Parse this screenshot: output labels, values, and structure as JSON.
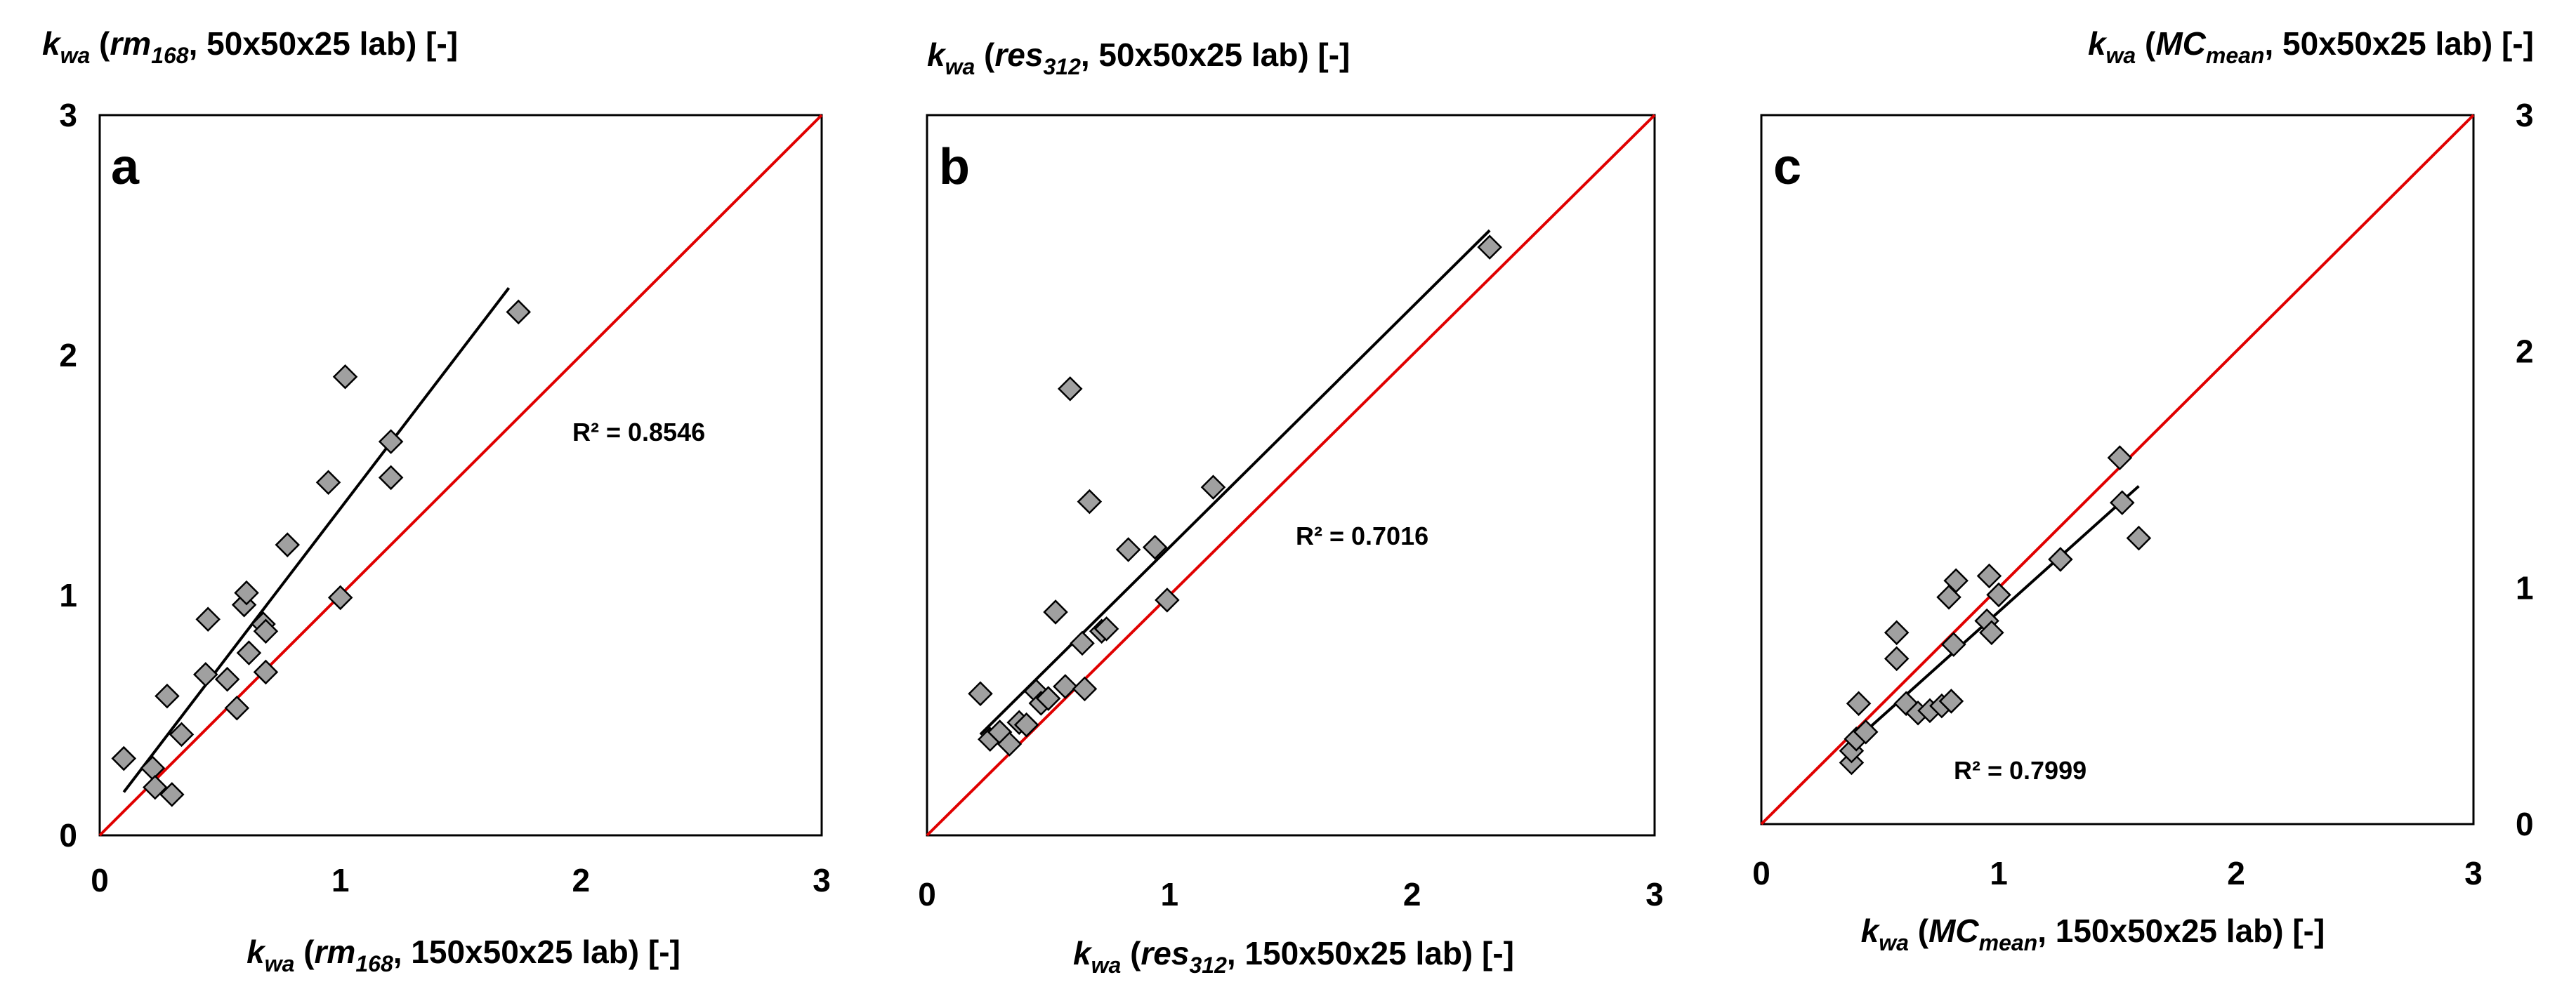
{
  "chart_data": [
    {
      "type": "scatter",
      "panel_label": "a",
      "ylabel_prefix": "k",
      "ylabel_sub": "wa",
      "ylabel_open": " (",
      "ylabel_var": "rm",
      "ylabel_varsub": "168",
      "ylabel_rest": ", 50x50x25 lab) [-]",
      "xlabel_prefix": "k",
      "xlabel_sub": "wa",
      "xlabel_open": " (",
      "xlabel_var": "rm",
      "xlabel_varsub": "168",
      "xlabel_rest": ", 150x50x25 lab) [-]",
      "xlim": [
        0,
        3
      ],
      "ylim": [
        0,
        3
      ],
      "x_ticks": [
        "0",
        "1",
        "2",
        "3"
      ],
      "y_ticks": [
        "0",
        "1",
        "2",
        "3"
      ],
      "r2_label": "R² = 0.8546",
      "points": [
        {
          "x": 0.1,
          "y": 0.32
        },
        {
          "x": 0.22,
          "y": 0.28
        },
        {
          "x": 0.23,
          "y": 0.2
        },
        {
          "x": 0.3,
          "y": 0.17
        },
        {
          "x": 0.28,
          "y": 0.58
        },
        {
          "x": 0.34,
          "y": 0.42
        },
        {
          "x": 0.44,
          "y": 0.67
        },
        {
          "x": 0.45,
          "y": 0.9
        },
        {
          "x": 0.53,
          "y": 0.65
        },
        {
          "x": 0.57,
          "y": 0.53
        },
        {
          "x": 0.6,
          "y": 0.96
        },
        {
          "x": 0.61,
          "y": 1.01
        },
        {
          "x": 0.62,
          "y": 0.76
        },
        {
          "x": 0.68,
          "y": 0.88
        },
        {
          "x": 0.69,
          "y": 0.85
        },
        {
          "x": 0.69,
          "y": 0.68
        },
        {
          "x": 0.78,
          "y": 1.21
        },
        {
          "x": 0.95,
          "y": 1.47
        },
        {
          "x": 1.0,
          "y": 0.99
        },
        {
          "x": 1.02,
          "y": 1.91
        },
        {
          "x": 1.21,
          "y": 1.64
        },
        {
          "x": 1.21,
          "y": 1.49
        },
        {
          "x": 1.74,
          "y": 2.18
        }
      ],
      "trendline": {
        "x": [
          0.1,
          1.7
        ],
        "y": [
          0.18,
          2.28
        ]
      },
      "reference_line": {
        "x": [
          0,
          3
        ],
        "y": [
          0,
          3
        ]
      }
    },
    {
      "type": "scatter",
      "panel_label": "b",
      "ylabel_prefix": "k",
      "ylabel_sub": "wa",
      "ylabel_open": " (",
      "ylabel_var": "res",
      "ylabel_varsub": "312",
      "ylabel_rest": ", 50x50x25 lab) [-]",
      "xlabel_prefix": "k",
      "xlabel_sub": "wa",
      "xlabel_open": " (",
      "xlabel_var": "res",
      "xlabel_varsub": "312",
      "xlabel_rest": ", 150x50x25 lab) [-]",
      "xlim": [
        0,
        3
      ],
      "ylim": [
        0,
        3
      ],
      "x_ticks": [
        "0",
        "1",
        "2",
        "3"
      ],
      "y_ticks": [],
      "r2_label": "R² = 0.7016",
      "points": [
        {
          "x": 0.22,
          "y": 0.59
        },
        {
          "x": 0.26,
          "y": 0.4
        },
        {
          "x": 0.3,
          "y": 0.43
        },
        {
          "x": 0.34,
          "y": 0.38
        },
        {
          "x": 0.38,
          "y": 0.47
        },
        {
          "x": 0.41,
          "y": 0.46
        },
        {
          "x": 0.45,
          "y": 0.6
        },
        {
          "x": 0.47,
          "y": 0.55
        },
        {
          "x": 0.5,
          "y": 0.57
        },
        {
          "x": 0.53,
          "y": 0.93
        },
        {
          "x": 0.57,
          "y": 0.62
        },
        {
          "x": 0.59,
          "y": 1.86
        },
        {
          "x": 0.64,
          "y": 0.8
        },
        {
          "x": 0.65,
          "y": 0.61
        },
        {
          "x": 0.67,
          "y": 1.39
        },
        {
          "x": 0.72,
          "y": 0.85
        },
        {
          "x": 0.74,
          "y": 0.86
        },
        {
          "x": 0.83,
          "y": 1.19
        },
        {
          "x": 0.94,
          "y": 1.2
        },
        {
          "x": 0.99,
          "y": 0.98
        },
        {
          "x": 1.18,
          "y": 1.45
        },
        {
          "x": 2.32,
          "y": 2.45
        }
      ],
      "trendline": {
        "x": [
          0.22,
          2.32
        ],
        "y": [
          0.42,
          2.52
        ]
      },
      "reference_line": {
        "x": [
          0,
          3
        ],
        "y": [
          0,
          3
        ]
      }
    },
    {
      "type": "scatter",
      "panel_label": "c",
      "ylabel_prefix": "k",
      "ylabel_sub": "wa",
      "ylabel_open": " (",
      "ylabel_var": "MC",
      "ylabel_varsub": "mean",
      "ylabel_rest": ", 50x50x25 lab) [-]",
      "xlabel_prefix": "k",
      "xlabel_sub": "wa",
      "xlabel_open": " (",
      "xlabel_var": "MC",
      "xlabel_varsub": "mean",
      "xlabel_rest": ", 150x50x25 lab) [-]",
      "xlim": [
        0,
        3
      ],
      "ylim": [
        0,
        3
      ],
      "x_ticks": [
        "0",
        "1",
        "2",
        "3"
      ],
      "y_ticks": [
        "0",
        "1",
        "2",
        "3"
      ],
      "r2_label": "R² = 0.7999",
      "points": [
        {
          "x": 0.38,
          "y": 0.26
        },
        {
          "x": 0.38,
          "y": 0.31
        },
        {
          "x": 0.4,
          "y": 0.36
        },
        {
          "x": 0.41,
          "y": 0.51
        },
        {
          "x": 0.44,
          "y": 0.39
        },
        {
          "x": 0.57,
          "y": 0.81
        },
        {
          "x": 0.57,
          "y": 0.7
        },
        {
          "x": 0.61,
          "y": 0.51
        },
        {
          "x": 0.66,
          "y": 0.47
        },
        {
          "x": 0.71,
          "y": 0.48
        },
        {
          "x": 0.76,
          "y": 0.5
        },
        {
          "x": 0.79,
          "y": 0.96
        },
        {
          "x": 0.8,
          "y": 0.52
        },
        {
          "x": 0.81,
          "y": 0.76
        },
        {
          "x": 0.82,
          "y": 1.03
        },
        {
          "x": 0.95,
          "y": 0.86
        },
        {
          "x": 0.96,
          "y": 1.05
        },
        {
          "x": 0.97,
          "y": 0.81
        },
        {
          "x": 1.0,
          "y": 0.97
        },
        {
          "x": 1.26,
          "y": 1.12
        },
        {
          "x": 1.51,
          "y": 1.55
        },
        {
          "x": 1.52,
          "y": 1.36
        },
        {
          "x": 1.59,
          "y": 1.21
        }
      ],
      "trendline": {
        "x": [
          0.38,
          1.59
        ],
        "y": [
          0.34,
          1.43
        ]
      },
      "reference_line": {
        "x": [
          0,
          3
        ],
        "y": [
          0,
          3
        ]
      }
    }
  ],
  "colors": {
    "marker_fill": "#a0a0a0",
    "marker_stroke": "#000000",
    "trendline": "#000000",
    "reference_line": "#e00000",
    "frame": "#000000",
    "text": "#000000"
  }
}
